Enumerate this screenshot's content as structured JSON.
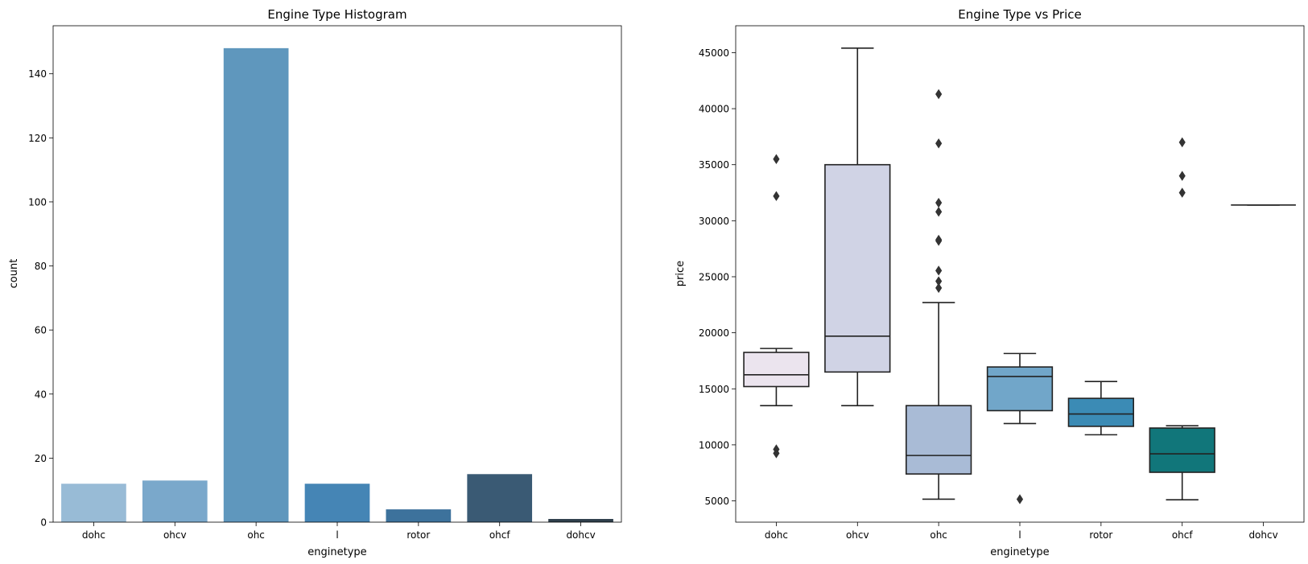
{
  "chart_data": [
    {
      "type": "bar",
      "title": "Engine Type Histogram",
      "xlabel": "enginetype",
      "ylabel": "count",
      "categories": [
        "dohc",
        "ohcv",
        "ohc",
        "l",
        "rotor",
        "ohcf",
        "dohcv"
      ],
      "values": [
        12,
        13,
        148,
        12,
        4,
        15,
        1
      ],
      "ylim": [
        0,
        155
      ],
      "yticks": [
        0,
        20,
        40,
        60,
        80,
        100,
        120,
        140
      ],
      "colors": [
        "#98bbd6",
        "#7aa8cb",
        "#5f97bd",
        "#4585b5",
        "#3d729c",
        "#3a5a74",
        "#2f3f4c"
      ]
    },
    {
      "type": "box",
      "title": "Engine Type vs Price",
      "xlabel": "enginetype",
      "ylabel": "price",
      "categories": [
        "dohc",
        "ohcv",
        "ohc",
        "l",
        "rotor",
        "ohcf",
        "dohcv"
      ],
      "ylim": [
        3100,
        47400
      ],
      "yticks": [
        5000,
        10000,
        15000,
        20000,
        25000,
        30000,
        35000,
        40000,
        45000
      ],
      "boxes": [
        {
          "category": "dohc",
          "whislo": 13500,
          "q1": 15200,
          "median": 16250,
          "q3": 18250,
          "whishi": 18600,
          "fliers": [
            35500,
            32200,
            9600,
            9250
          ],
          "color": "#ebe4ee"
        },
        {
          "category": "ohcv",
          "whislo": 13500,
          "q1": 16500,
          "median": 19700,
          "q3": 35000,
          "whishi": 45400,
          "fliers": [],
          "color": "#d0d3e5"
        },
        {
          "category": "ohc",
          "whislo": 5150,
          "q1": 7400,
          "median": 9050,
          "q3": 13500,
          "whishi": 22700,
          "fliers": [
            41300,
            36900,
            31600,
            30800,
            28300,
            28200,
            25550,
            24600,
            24000
          ],
          "color": "#a9bbd6"
        },
        {
          "category": "l",
          "whislo": 11900,
          "q1": 13050,
          "median": 16100,
          "q3": 16950,
          "whishi": 18150,
          "fliers": [
            5150
          ],
          "color": "#71a6c9"
        },
        {
          "category": "rotor",
          "whislo": 10900,
          "q1": 11650,
          "median": 12750,
          "q3": 14150,
          "whishi": 15650,
          "fliers": [],
          "color": "#3b8bb5"
        },
        {
          "category": "ohcf",
          "whislo": 5100,
          "q1": 7550,
          "median": 9200,
          "q3": 11500,
          "whishi": 11700,
          "fliers": [
            37000,
            34000,
            32500
          ],
          "color": "#11767a"
        },
        {
          "category": "dohcv",
          "whislo": 31400,
          "q1": 31400,
          "median": 31400,
          "q3": 31400,
          "whishi": 31400,
          "fliers": [],
          "color": "#0d6b6e"
        }
      ]
    }
  ]
}
